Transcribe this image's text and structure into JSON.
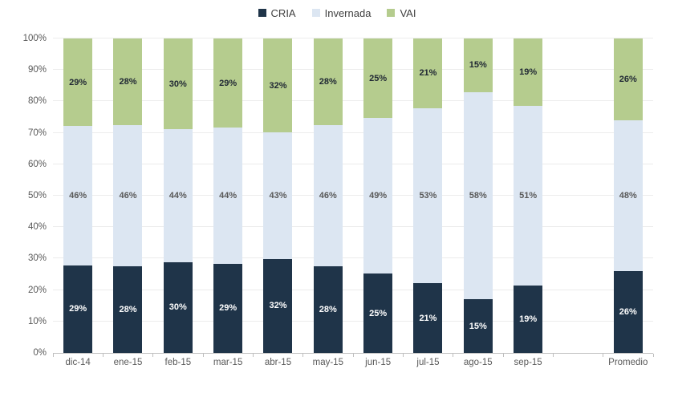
{
  "chart_data": {
    "type": "bar",
    "stacked": true,
    "percent_stacked": true,
    "title": "",
    "xlabel": "",
    "ylabel": "",
    "categories": [
      "dic-14",
      "ene-15",
      "feb-15",
      "mar-15",
      "abr-15",
      "may-15",
      "jun-15",
      "jul-15",
      "ago-15",
      "sep-15",
      "Promedio"
    ],
    "gap_before_category": "Promedio",
    "series": [
      {
        "name": "CRIA",
        "color": "#1f3449",
        "label_color": "#ffffff",
        "values": [
          29,
          28,
          30,
          29,
          32,
          28,
          25,
          21,
          15,
          19,
          26
        ]
      },
      {
        "name": "Invernada",
        "color": "#dce6f2",
        "label_color": "#595959",
        "values": [
          46,
          46,
          44,
          44,
          43,
          46,
          49,
          53,
          58,
          51,
          48
        ]
      },
      {
        "name": "VAI",
        "color": "#b5cc8e",
        "label_color": "#1f2733",
        "values": [
          29,
          28,
          30,
          29,
          32,
          28,
          25,
          21,
          15,
          19,
          26
        ]
      }
    ],
    "value_suffix": "%",
    "y_ticks": [
      "0%",
      "10%",
      "20%",
      "30%",
      "40%",
      "50%",
      "60%",
      "70%",
      "80%",
      "90%",
      "100%"
    ],
    "ylim": [
      0,
      100
    ],
    "grid": true,
    "legend_position": "top"
  },
  "colors": {
    "axis_line": "#bfbfbf",
    "gridline": "#ececec",
    "tick_label": "#595959",
    "legend_text": "#404040",
    "background": "#ffffff"
  }
}
